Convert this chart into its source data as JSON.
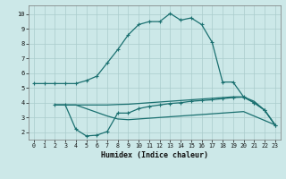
{
  "bg_color": "#cce8e8",
  "grid_color": "#aacccc",
  "line_color": "#1a7070",
  "xlabel": "Humidex (Indice chaleur)",
  "xlim": [
    -0.5,
    23.5
  ],
  "ylim": [
    1.5,
    10.6
  ],
  "yticks": [
    2,
    3,
    4,
    5,
    6,
    7,
    8,
    9,
    10
  ],
  "xticks": [
    0,
    1,
    2,
    3,
    4,
    5,
    6,
    7,
    8,
    9,
    10,
    11,
    12,
    13,
    14,
    15,
    16,
    17,
    18,
    19,
    20,
    21,
    22,
    23
  ],
  "curve1_x": [
    0,
    1,
    2,
    3,
    4,
    5,
    6,
    7,
    8,
    9,
    10,
    11,
    12,
    13,
    14,
    15,
    16,
    17,
    18,
    19,
    20,
    21,
    22,
    23
  ],
  "curve1_y": [
    5.3,
    5.3,
    5.3,
    5.3,
    5.3,
    5.5,
    5.8,
    6.7,
    7.6,
    8.6,
    9.3,
    9.5,
    9.5,
    10.05,
    9.6,
    9.75,
    9.3,
    8.1,
    5.4,
    5.4,
    4.4,
    4.0,
    3.5,
    2.5
  ],
  "curve2_x": [
    2,
    3,
    4,
    5,
    6,
    7,
    8,
    9,
    10,
    11,
    12,
    13,
    14,
    15,
    16,
    17,
    18,
    19,
    20,
    21,
    22,
    23
  ],
  "curve2_y": [
    3.85,
    3.85,
    3.85,
    3.85,
    3.85,
    3.85,
    3.88,
    3.9,
    3.95,
    4.0,
    4.05,
    4.1,
    4.15,
    4.2,
    4.25,
    4.3,
    4.35,
    4.4,
    4.4,
    4.1,
    3.5,
    2.5
  ],
  "curve3_x": [
    2,
    3,
    4,
    5,
    6,
    7,
    8,
    9,
    10,
    11,
    12,
    13,
    14,
    15,
    16,
    17,
    18,
    19,
    20,
    21,
    22,
    23
  ],
  "curve3_y": [
    3.85,
    3.85,
    2.2,
    1.75,
    1.8,
    2.05,
    3.3,
    3.3,
    3.6,
    3.75,
    3.85,
    3.95,
    4.0,
    4.1,
    4.15,
    4.2,
    4.28,
    4.35,
    4.38,
    4.0,
    3.5,
    2.5
  ],
  "curve4_x": [
    2,
    3,
    4,
    5,
    6,
    7,
    8,
    9,
    10,
    11,
    12,
    13,
    14,
    15,
    16,
    17,
    18,
    19,
    20,
    21,
    22,
    23
  ],
  "curve4_y": [
    3.85,
    3.85,
    3.85,
    3.6,
    3.35,
    3.1,
    2.9,
    2.85,
    2.9,
    2.95,
    3.0,
    3.05,
    3.1,
    3.15,
    3.2,
    3.25,
    3.3,
    3.35,
    3.4,
    3.1,
    2.8,
    2.5
  ]
}
